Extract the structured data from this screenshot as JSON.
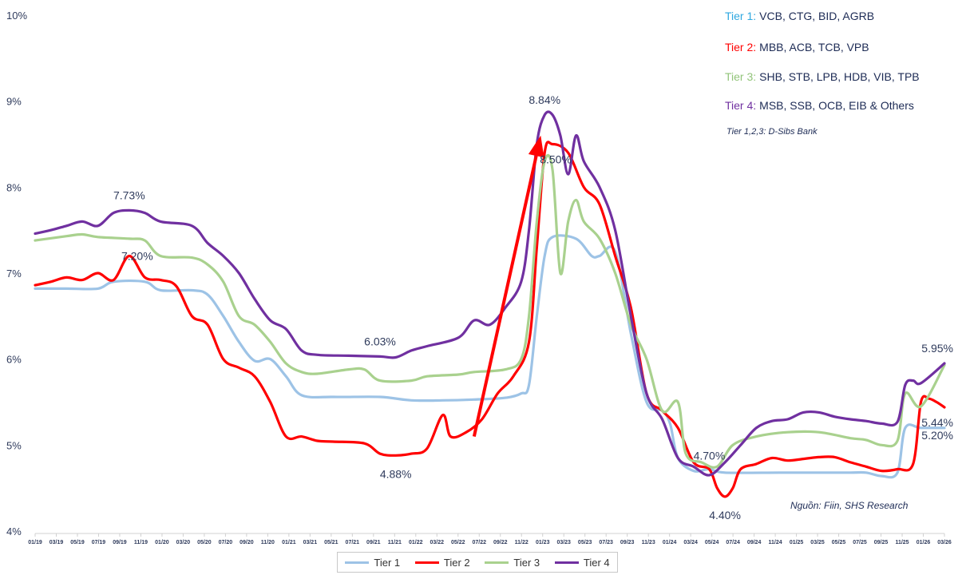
{
  "chart_data": {
    "type": "line",
    "title": "",
    "xlabel": "",
    "ylabel": "",
    "ylim": [
      4,
      10
    ],
    "yticks": [
      "4%",
      "5%",
      "6%",
      "7%",
      "8%",
      "9%",
      "10%"
    ],
    "xtick_labels": [
      "01/19",
      "03/19",
      "05/19",
      "07/19",
      "09/19",
      "11/19",
      "01/20",
      "03/20",
      "05/20",
      "07/20",
      "09/20",
      "11/20",
      "01/21",
      "03/21",
      "05/21",
      "07/21",
      "09/21",
      "11/21",
      "01/22",
      "03/22",
      "05/22",
      "07/22",
      "09/22",
      "11/22",
      "01/23",
      "03/23",
      "05/23",
      "07/23",
      "09/23",
      "11/23",
      "01/24",
      "03/24",
      "05/24",
      "07/24",
      "09/24",
      "11/24",
      "01/25",
      "03/25",
      "05/25",
      "07/25",
      "09/25",
      "11/25",
      "01/26",
      "03/26"
    ],
    "x_start": "01/19",
    "x_end": "03/26",
    "x_months_total": 86,
    "series": [
      {
        "name": "Tier 1",
        "color": "#9dc3e6",
        "points": [
          [
            0,
            6.82
          ],
          [
            4,
            6.82
          ],
          [
            8,
            6.82
          ],
          [
            10,
            6.9
          ],
          [
            14,
            6.9
          ],
          [
            16,
            6.8
          ],
          [
            20,
            6.8
          ],
          [
            22,
            6.75
          ],
          [
            24,
            6.5
          ],
          [
            26,
            6.2
          ],
          [
            28,
            5.98
          ],
          [
            30,
            6.0
          ],
          [
            32,
            5.8
          ],
          [
            34,
            5.58
          ],
          [
            38,
            5.56
          ],
          [
            44,
            5.56
          ],
          [
            48,
            5.52
          ],
          [
            52,
            5.52
          ],
          [
            56,
            5.53
          ],
          [
            60,
            5.55
          ],
          [
            62,
            5.6
          ],
          [
            63,
            5.7
          ],
          [
            64,
            6.5
          ],
          [
            65,
            7.2
          ],
          [
            66,
            7.42
          ],
          [
            69,
            7.4
          ],
          [
            71,
            7.2
          ],
          [
            72,
            7.2
          ],
          [
            74,
            7.25
          ],
          [
            76,
            6.3
          ],
          [
            78,
            5.5
          ],
          [
            80,
            5.4
          ],
          [
            81,
            5.25
          ],
          [
            82,
            4.85
          ],
          [
            84,
            4.7
          ],
          [
            86,
            4.72
          ],
          [
            88,
            4.68
          ],
          [
            95,
            4.68
          ],
          [
            100,
            4.68
          ],
          [
            104,
            4.68
          ],
          [
            106,
            4.68
          ],
          [
            108,
            4.64
          ],
          [
            110,
            4.68
          ],
          [
            111,
            5.2
          ],
          [
            113,
            5.2
          ],
          [
            116,
            5.2
          ]
        ]
      },
      {
        "name": "Tier 2",
        "color": "#ff0000",
        "points": [
          [
            0,
            6.86
          ],
          [
            2,
            6.9
          ],
          [
            4,
            6.95
          ],
          [
            6,
            6.92
          ],
          [
            8,
            7.0
          ],
          [
            10,
            6.92
          ],
          [
            12,
            7.2
          ],
          [
            14,
            6.95
          ],
          [
            16,
            6.92
          ],
          [
            18,
            6.85
          ],
          [
            20,
            6.5
          ],
          [
            22,
            6.4
          ],
          [
            24,
            6.0
          ],
          [
            26,
            5.9
          ],
          [
            28,
            5.8
          ],
          [
            30,
            5.5
          ],
          [
            32,
            5.1
          ],
          [
            34,
            5.1
          ],
          [
            36,
            5.05
          ],
          [
            38,
            5.04
          ],
          [
            42,
            5.02
          ],
          [
            44,
            4.9
          ],
          [
            46,
            4.88
          ],
          [
            48,
            4.9
          ],
          [
            50,
            4.96
          ],
          [
            52,
            5.35
          ],
          [
            53,
            5.1
          ],
          [
            55,
            5.15
          ],
          [
            57,
            5.3
          ],
          [
            59,
            5.6
          ],
          [
            61,
            5.8
          ],
          [
            63,
            6.2
          ],
          [
            64,
            7.3
          ],
          [
            65,
            8.4
          ],
          [
            66,
            8.5
          ],
          [
            68,
            8.4
          ],
          [
            70,
            8.0
          ],
          [
            72,
            7.8
          ],
          [
            74,
            7.2
          ],
          [
            76,
            6.6
          ],
          [
            78,
            5.6
          ],
          [
            80,
            5.4
          ],
          [
            82,
            5.2
          ],
          [
            84,
            4.8
          ],
          [
            86,
            4.72
          ],
          [
            87,
            4.5
          ],
          [
            88,
            4.4
          ],
          [
            89,
            4.5
          ],
          [
            90,
            4.72
          ],
          [
            92,
            4.78
          ],
          [
            94,
            4.85
          ],
          [
            96,
            4.82
          ],
          [
            98,
            4.84
          ],
          [
            100,
            4.86
          ],
          [
            102,
            4.86
          ],
          [
            104,
            4.8
          ],
          [
            106,
            4.75
          ],
          [
            108,
            4.7
          ],
          [
            110,
            4.72
          ],
          [
            112,
            4.78
          ],
          [
            113,
            5.5
          ],
          [
            114,
            5.54
          ],
          [
            115,
            5.5
          ],
          [
            116,
            5.44
          ]
        ]
      },
      {
        "name": "Tier 3",
        "color": "#a9d18e",
        "points": [
          [
            0,
            7.38
          ],
          [
            4,
            7.43
          ],
          [
            6,
            7.45
          ],
          [
            8,
            7.42
          ],
          [
            12,
            7.4
          ],
          [
            14,
            7.38
          ],
          [
            16,
            7.2
          ],
          [
            20,
            7.18
          ],
          [
            22,
            7.1
          ],
          [
            24,
            6.9
          ],
          [
            26,
            6.5
          ],
          [
            28,
            6.4
          ],
          [
            30,
            6.2
          ],
          [
            32,
            5.95
          ],
          [
            34,
            5.85
          ],
          [
            36,
            5.83
          ],
          [
            40,
            5.88
          ],
          [
            42,
            5.88
          ],
          [
            44,
            5.75
          ],
          [
            48,
            5.75
          ],
          [
            50,
            5.8
          ],
          [
            54,
            5.82
          ],
          [
            56,
            5.85
          ],
          [
            60,
            5.88
          ],
          [
            62,
            6.0
          ],
          [
            63,
            6.5
          ],
          [
            64,
            7.6
          ],
          [
            65,
            8.3
          ],
          [
            66,
            8.2
          ],
          [
            67,
            7.0
          ],
          [
            68,
            7.6
          ],
          [
            69,
            7.85
          ],
          [
            70,
            7.6
          ],
          [
            72,
            7.4
          ],
          [
            74,
            7.0
          ],
          [
            76,
            6.4
          ],
          [
            78,
            6.0
          ],
          [
            80,
            5.4
          ],
          [
            82,
            5.5
          ],
          [
            83,
            4.9
          ],
          [
            85,
            4.8
          ],
          [
            87,
            4.75
          ],
          [
            89,
            5.0
          ],
          [
            92,
            5.1
          ],
          [
            96,
            5.15
          ],
          [
            100,
            5.15
          ],
          [
            104,
            5.08
          ],
          [
            106,
            5.06
          ],
          [
            108,
            5.0
          ],
          [
            110,
            5.05
          ],
          [
            111,
            5.6
          ],
          [
            113,
            5.45
          ],
          [
            116,
            5.93
          ]
        ]
      },
      {
        "name": "Tier 4",
        "color": "#7030a0",
        "points": [
          [
            0,
            7.46
          ],
          [
            2,
            7.5
          ],
          [
            4,
            7.55
          ],
          [
            6,
            7.6
          ],
          [
            8,
            7.55
          ],
          [
            10,
            7.7
          ],
          [
            12,
            7.73
          ],
          [
            14,
            7.7
          ],
          [
            16,
            7.6
          ],
          [
            20,
            7.55
          ],
          [
            22,
            7.35
          ],
          [
            24,
            7.2
          ],
          [
            26,
            7.0
          ],
          [
            28,
            6.7
          ],
          [
            30,
            6.45
          ],
          [
            32,
            6.35
          ],
          [
            34,
            6.1
          ],
          [
            36,
            6.05
          ],
          [
            40,
            6.04
          ],
          [
            44,
            6.03
          ],
          [
            46,
            6.02
          ],
          [
            48,
            6.1
          ],
          [
            50,
            6.15
          ],
          [
            54,
            6.25
          ],
          [
            56,
            6.45
          ],
          [
            58,
            6.4
          ],
          [
            60,
            6.6
          ],
          [
            62,
            6.9
          ],
          [
            63,
            7.5
          ],
          [
            64,
            8.5
          ],
          [
            65,
            8.84
          ],
          [
            66,
            8.84
          ],
          [
            67,
            8.6
          ],
          [
            68,
            8.15
          ],
          [
            69,
            8.6
          ],
          [
            70,
            8.3
          ],
          [
            72,
            8.0
          ],
          [
            74,
            7.5
          ],
          [
            76,
            6.5
          ],
          [
            78,
            5.6
          ],
          [
            80,
            5.3
          ],
          [
            82,
            4.85
          ],
          [
            84,
            4.75
          ],
          [
            86,
            4.65
          ],
          [
            88,
            4.8
          ],
          [
            90,
            5.0
          ],
          [
            92,
            5.2
          ],
          [
            94,
            5.28
          ],
          [
            96,
            5.3
          ],
          [
            98,
            5.38
          ],
          [
            100,
            5.38
          ],
          [
            102,
            5.33
          ],
          [
            104,
            5.3
          ],
          [
            106,
            5.28
          ],
          [
            108,
            5.25
          ],
          [
            110,
            5.27
          ],
          [
            111,
            5.7
          ],
          [
            112,
            5.75
          ],
          [
            113,
            5.72
          ],
          [
            116,
            5.95
          ]
        ]
      }
    ],
    "annotations": [
      {
        "text": "7.73%",
        "x": 12,
        "y": 7.73,
        "pos": "above"
      },
      {
        "text": "7.20%",
        "x": 12,
        "y": 7.2,
        "pos": "right"
      },
      {
        "text": "6.03%",
        "x": 44,
        "y": 6.03,
        "pos": "above"
      },
      {
        "text": "4.88%",
        "x": 46,
        "y": 4.88,
        "pos": "below"
      },
      {
        "text": "8.84%",
        "x": 65,
        "y": 8.84,
        "pos": "above"
      },
      {
        "text": "8.50%",
        "x": 66,
        "y": 8.5,
        "pos": "below"
      },
      {
        "text": "4.70%",
        "x": 86,
        "y": 4.7,
        "pos": "above"
      },
      {
        "text": "4.40%",
        "x": 88,
        "y": 4.4,
        "pos": "below"
      },
      {
        "text": "5.95%",
        "x": 116,
        "y": 5.95,
        "pos": "above"
      },
      {
        "text": "5.44%",
        "x": 116,
        "y": 5.44,
        "pos": "right"
      },
      {
        "text": "5.20%",
        "x": 116,
        "y": 5.2,
        "pos": "right"
      }
    ],
    "arrow": {
      "from": [
        56,
        5.1
      ],
      "to": [
        64.5,
        8.6
      ],
      "color": "#ff0000"
    },
    "legend": [
      "Tier 1",
      "Tier 2",
      "Tier 3",
      "Tier 4"
    ]
  },
  "tier_notes": [
    {
      "name": "Tier 1:",
      "banks": "VCB, CTG, BID, AGRB",
      "color": "#2fa8e0"
    },
    {
      "name": "Tier 2:",
      "banks": "MBB, ACB, TCB, VPB",
      "color": "#ff0000"
    },
    {
      "name": "Tier 3:",
      "banks": "SHB, STB, LPB, HDB, VIB, TPB",
      "color": "#92c47a"
    },
    {
      "name": "Tier 4:",
      "banks": "MSB, SSB, OCB, EIB & Others",
      "color": "#7030a0"
    }
  ],
  "dsibs_note": "Tier 1,2,3: D-Sibs Bank",
  "source_note": "Nguồn: Fiin, SHS Research"
}
